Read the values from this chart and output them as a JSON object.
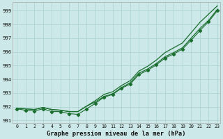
{
  "title": "Graphe pression niveau de la mer (hPa)",
  "bg_color": "#cce8e8",
  "grid_color": "#aad0d0",
  "line_color": "#1a6e2e",
  "xlim_min": -0.5,
  "xlim_max": 23.3,
  "ylim_min": 990.8,
  "ylim_max": 999.6,
  "yticks": [
    991,
    992,
    993,
    994,
    995,
    996,
    997,
    998,
    999
  ],
  "xticks": [
    0,
    1,
    2,
    3,
    4,
    5,
    6,
    7,
    8,
    9,
    10,
    11,
    12,
    13,
    14,
    15,
    16,
    17,
    18,
    19,
    20,
    21,
    22,
    23
  ],
  "series_upper": [
    991.9,
    991.85,
    991.8,
    991.95,
    991.8,
    991.75,
    991.65,
    991.65,
    992.05,
    992.45,
    992.9,
    993.1,
    993.55,
    993.9,
    994.6,
    994.95,
    995.4,
    995.95,
    996.3,
    996.65,
    997.4,
    998.15,
    998.75,
    999.35
  ],
  "series_mid": [
    991.9,
    991.85,
    991.8,
    991.95,
    991.8,
    991.75,
    991.65,
    991.65,
    992.05,
    992.35,
    992.75,
    992.95,
    993.4,
    993.75,
    994.45,
    994.75,
    995.15,
    995.65,
    995.95,
    996.3,
    997.0,
    997.7,
    998.3,
    999.1
  ],
  "series_marked": [
    991.85,
    991.75,
    991.7,
    991.85,
    991.65,
    991.65,
    991.5,
    991.45,
    991.85,
    992.25,
    992.7,
    992.9,
    993.35,
    993.65,
    994.35,
    994.65,
    995.05,
    995.55,
    995.85,
    996.2,
    996.85,
    997.55,
    998.2,
    999.0
  ]
}
